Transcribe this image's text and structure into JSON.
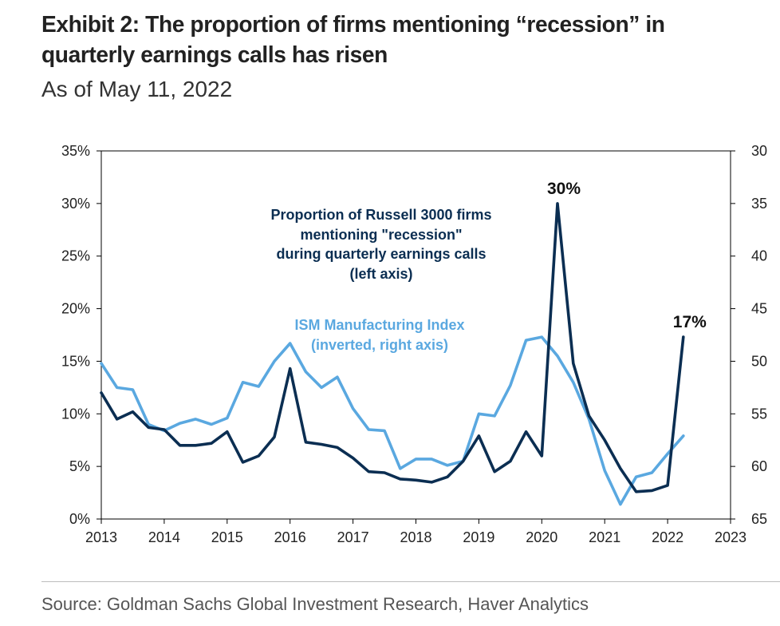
{
  "title_line1": "Exhibit 2: The proportion of firms mentioning “recession” in",
  "title_line2": "quarterly earnings calls has risen",
  "subtitle": "As of May 11, 2022",
  "source": "Source: Goldman Sachs Global Investment Research, Haver Analytics",
  "colors": {
    "recession_series": "#0b2e52",
    "ism_series": "#5aa8e0",
    "axis": "#000000",
    "text": "#222222"
  },
  "chart_data": {
    "type": "line",
    "x_ticks": [
      "2013",
      "2014",
      "2015",
      "2016",
      "2017",
      "2018",
      "2019",
      "2020",
      "2021",
      "2022",
      "2023"
    ],
    "xlim": [
      2013,
      2023
    ],
    "y_left": {
      "ticks": [
        "0%",
        "5%",
        "10%",
        "15%",
        "20%",
        "25%",
        "30%",
        "35%"
      ],
      "ylim": [
        0,
        35
      ]
    },
    "y_right": {
      "ticks": [
        "65",
        "60",
        "55",
        "50",
        "45",
        "40",
        "35",
        "30"
      ],
      "ylim": [
        65,
        30
      ],
      "inverted": true
    },
    "grid": false,
    "series": [
      {
        "name": "Proportion of Russell 3000 firms mentioning \"recession\" during quarterly earnings calls (left axis)",
        "label_lines": [
          "Proportion of Russell 3000 firms",
          "mentioning \"recession\"",
          "during quarterly earnings calls",
          "(left axis)"
        ],
        "axis": "left",
        "color": "#0b2e52",
        "points": [
          [
            2013.0,
            12.0
          ],
          [
            2013.25,
            9.5
          ],
          [
            2013.5,
            10.2
          ],
          [
            2013.75,
            8.7
          ],
          [
            2014.0,
            8.5
          ],
          [
            2014.25,
            7.0
          ],
          [
            2014.5,
            7.0
          ],
          [
            2014.75,
            7.2
          ],
          [
            2015.0,
            8.3
          ],
          [
            2015.25,
            5.4
          ],
          [
            2015.5,
            6.0
          ],
          [
            2015.75,
            7.8
          ],
          [
            2016.0,
            14.3
          ],
          [
            2016.25,
            7.3
          ],
          [
            2016.5,
            7.1
          ],
          [
            2016.75,
            6.8
          ],
          [
            2017.0,
            5.8
          ],
          [
            2017.25,
            4.5
          ],
          [
            2017.5,
            4.4
          ],
          [
            2017.75,
            3.8
          ],
          [
            2018.0,
            3.7
          ],
          [
            2018.25,
            3.5
          ],
          [
            2018.5,
            4.0
          ],
          [
            2018.75,
            5.5
          ],
          [
            2019.0,
            7.9
          ],
          [
            2019.25,
            4.5
          ],
          [
            2019.5,
            5.5
          ],
          [
            2019.75,
            8.3
          ],
          [
            2020.0,
            6.0
          ],
          [
            2020.25,
            30.0
          ],
          [
            2020.5,
            14.8
          ],
          [
            2020.75,
            9.8
          ],
          [
            2021.0,
            7.5
          ],
          [
            2021.25,
            4.8
          ],
          [
            2021.5,
            2.6
          ],
          [
            2021.75,
            2.7
          ],
          [
            2022.0,
            3.2
          ],
          [
            2022.25,
            17.3
          ]
        ]
      },
      {
        "name": "ISM Manufacturing Index (inverted, right axis)",
        "label_lines": [
          "ISM Manufacturing Index",
          "(inverted, right axis)"
        ],
        "axis": "right",
        "color": "#5aa8e0",
        "points": [
          [
            2013.0,
            50.2
          ],
          [
            2013.25,
            52.5
          ],
          [
            2013.5,
            52.7
          ],
          [
            2013.75,
            56.0
          ],
          [
            2014.0,
            56.6
          ],
          [
            2014.25,
            55.9
          ],
          [
            2014.5,
            55.5
          ],
          [
            2014.75,
            56.0
          ],
          [
            2015.0,
            55.4
          ],
          [
            2015.25,
            52.0
          ],
          [
            2015.5,
            52.4
          ],
          [
            2015.75,
            50.0
          ],
          [
            2016.0,
            48.3
          ],
          [
            2016.25,
            51.0
          ],
          [
            2016.5,
            52.5
          ],
          [
            2016.75,
            51.5
          ],
          [
            2017.0,
            54.5
          ],
          [
            2017.25,
            56.5
          ],
          [
            2017.5,
            56.6
          ],
          [
            2017.75,
            60.2
          ],
          [
            2018.0,
            59.3
          ],
          [
            2018.25,
            59.3
          ],
          [
            2018.5,
            59.9
          ],
          [
            2018.75,
            59.5
          ],
          [
            2019.0,
            55.0
          ],
          [
            2019.25,
            55.2
          ],
          [
            2019.5,
            52.3
          ],
          [
            2019.75,
            48.0
          ],
          [
            2020.0,
            47.7
          ],
          [
            2020.25,
            49.5
          ],
          [
            2020.5,
            52.0
          ],
          [
            2020.75,
            55.5
          ],
          [
            2021.0,
            60.4
          ],
          [
            2021.25,
            63.6
          ],
          [
            2021.5,
            61.0
          ],
          [
            2021.75,
            60.6
          ],
          [
            2022.0,
            58.8
          ],
          [
            2022.25,
            57.1
          ]
        ]
      }
    ],
    "annotations": [
      {
        "text": "30%",
        "x": 2020.25,
        "y": 30.0,
        "axis": "left"
      },
      {
        "text": "17%",
        "x": 2022.25,
        "y": 17.3,
        "axis": "left"
      }
    ]
  }
}
